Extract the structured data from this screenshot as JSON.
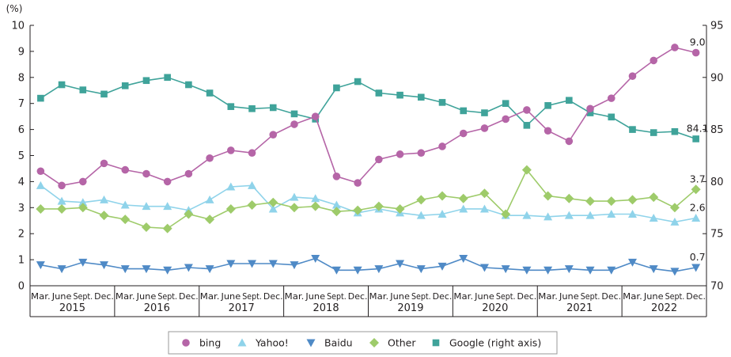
{
  "chart_data": {
    "type": "line",
    "title": "",
    "y_unit_label": "(%)",
    "ylim": [
      0,
      10
    ],
    "y_ticks": [
      "0",
      "1",
      "2",
      "3",
      "4",
      "5",
      "6",
      "7",
      "8",
      "9",
      "10"
    ],
    "y2lim": [
      70,
      95
    ],
    "y2_ticks": [
      "70",
      "75",
      "80",
      "85",
      "90",
      "95"
    ],
    "grid": false,
    "legend_position": "bottom",
    "quarter_labels": [
      "Mar.",
      "June",
      "Sept.",
      "Dec."
    ],
    "years": [
      "2015",
      "2016",
      "2017",
      "2018",
      "2019",
      "2020",
      "2021",
      "2022"
    ],
    "x": [
      "2015 Mar.",
      "2015 June",
      "2015 Sept.",
      "2015 Dec.",
      "2016 Mar.",
      "2016 June",
      "2016 Sept.",
      "2016 Dec.",
      "2017 Mar.",
      "2017 June",
      "2017 Sept.",
      "2017 Dec.",
      "2018 Mar.",
      "2018 June",
      "2018 Sept.",
      "2018 Dec.",
      "2019 Mar.",
      "2019 June",
      "2019 Sept.",
      "2019 Dec.",
      "2020 Mar.",
      "2020 June",
      "2020 Sept.",
      "2020 Dec.",
      "2021 Mar.",
      "2021 June",
      "2021 Sept.",
      "2021 Dec.",
      "2022 Mar.",
      "2022 June",
      "2022 Sept.",
      "2022 Dec."
    ],
    "series": [
      {
        "name": "bing",
        "axis": "left",
        "marker": "circle",
        "color": "#b565a7",
        "values": [
          4.4,
          3.85,
          4.0,
          4.7,
          4.45,
          4.3,
          4.0,
          4.3,
          4.9,
          5.2,
          5.1,
          5.8,
          6.2,
          6.5,
          4.2,
          3.95,
          4.85,
          5.05,
          5.1,
          5.35,
          5.85,
          6.05,
          6.4,
          6.75,
          5.95,
          5.55,
          6.8,
          7.2,
          8.05,
          8.65,
          9.15,
          8.95
        ]
      },
      {
        "name": "Yahoo!",
        "axis": "left",
        "marker": "triangle-up",
        "color": "#8fd3ea",
        "values": [
          3.85,
          3.25,
          3.2,
          3.3,
          3.1,
          3.05,
          3.05,
          2.9,
          3.3,
          3.8,
          3.85,
          2.95,
          3.4,
          3.35,
          3.1,
          2.8,
          2.95,
          2.8,
          2.7,
          2.75,
          2.95,
          2.95,
          2.7,
          2.7,
          2.65,
          2.7,
          2.7,
          2.75,
          2.75,
          2.6,
          2.45,
          2.6
        ]
      },
      {
        "name": "Baidu",
        "axis": "left",
        "marker": "triangle-down",
        "color": "#4f8ac6",
        "values": [
          0.8,
          0.65,
          0.9,
          0.8,
          0.65,
          0.65,
          0.6,
          0.7,
          0.65,
          0.85,
          0.85,
          0.85,
          0.8,
          1.05,
          0.6,
          0.6,
          0.65,
          0.85,
          0.65,
          0.75,
          1.05,
          0.7,
          0.65,
          0.6,
          0.6,
          0.65,
          0.6,
          0.6,
          0.9,
          0.65,
          0.55,
          0.7
        ]
      },
      {
        "name": "Other",
        "axis": "left",
        "marker": "diamond",
        "color": "#9ecb6a",
        "values": [
          2.95,
          2.95,
          3.0,
          2.7,
          2.55,
          2.25,
          2.2,
          2.75,
          2.55,
          2.95,
          3.1,
          3.2,
          3.0,
          3.05,
          2.85,
          2.9,
          3.05,
          2.95,
          3.3,
          3.45,
          3.35,
          3.55,
          2.75,
          4.45,
          3.45,
          3.35,
          3.25,
          3.25,
          3.3,
          3.4,
          3.0,
          3.7
        ]
      },
      {
        "name": "Google  (right axis)",
        "axis": "right",
        "marker": "square",
        "color": "#3fa39a",
        "values": [
          88.0,
          89.3,
          88.8,
          88.4,
          89.2,
          89.7,
          90.0,
          89.3,
          88.5,
          87.2,
          87.0,
          87.1,
          86.5,
          86.0,
          89.0,
          89.6,
          88.5,
          88.3,
          88.1,
          87.6,
          86.8,
          86.6,
          87.5,
          85.4,
          87.3,
          87.8,
          86.6,
          86.2,
          85.0,
          84.7,
          84.8,
          84.1
        ]
      }
    ],
    "annotations": [
      {
        "series": "bing",
        "text": "9.0"
      },
      {
        "series": "Google  (right axis)",
        "text": "84.1"
      },
      {
        "series": "Other",
        "text": "3.7"
      },
      {
        "series": "Yahoo!",
        "text": "2.6"
      },
      {
        "series": "Baidu",
        "text": "0.7"
      }
    ]
  }
}
